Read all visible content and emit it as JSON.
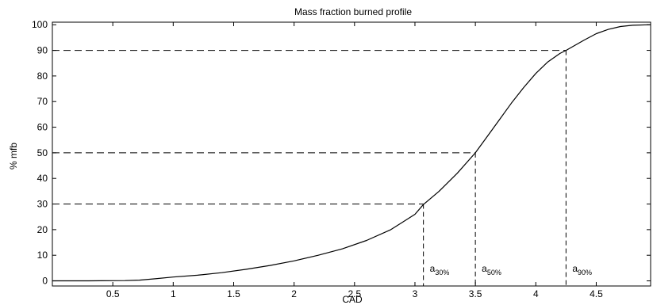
{
  "chart_data": {
    "type": "line",
    "title": "Mass fraction burned profile",
    "xlabel": "CAD",
    "ylabel": "% mfb",
    "xlim": [
      0,
      4.95
    ],
    "ylim": [
      -2,
      101
    ],
    "grid": false,
    "xticks": [
      {
        "value": 0.5,
        "label": "0.5"
      },
      {
        "value": 1,
        "label": "1"
      },
      {
        "value": 1.5,
        "label": "1.5"
      },
      {
        "value": 2,
        "label": "2"
      },
      {
        "value": 2.5,
        "label": "2.5"
      },
      {
        "value": 3,
        "label": "3"
      },
      {
        "value": 3.5,
        "label": "3.5"
      },
      {
        "value": 4,
        "label": "4"
      },
      {
        "value": 4.5,
        "label": "4.5"
      }
    ],
    "yticks": [
      {
        "value": 0,
        "label": "0"
      },
      {
        "value": 10,
        "label": "10"
      },
      {
        "value": 20,
        "label": "20"
      },
      {
        "value": 30,
        "label": "30"
      },
      {
        "value": 40,
        "label": "40"
      },
      {
        "value": 50,
        "label": "50"
      },
      {
        "value": 60,
        "label": "60"
      },
      {
        "value": 70,
        "label": "70"
      },
      {
        "value": 80,
        "label": "80"
      },
      {
        "value": 90,
        "label": "90"
      },
      {
        "value": 100,
        "label": "100"
      }
    ],
    "series": [
      {
        "x": [
          0,
          0.3,
          0.6,
          0.72,
          0.85,
          1.0,
          1.2,
          1.4,
          1.6,
          1.8,
          2.0,
          2.2,
          2.4,
          2.6,
          2.8,
          3.0,
          3.07,
          3.2,
          3.35,
          3.5,
          3.6,
          3.7,
          3.8,
          3.9,
          4.0,
          4.1,
          4.2,
          4.25,
          4.4,
          4.5,
          4.6,
          4.7,
          4.8,
          4.95
        ],
        "y": [
          0,
          0,
          0.1,
          0.3,
          0.8,
          1.5,
          2.2,
          3.2,
          4.5,
          6.0,
          7.8,
          10.0,
          12.5,
          15.8,
          20.0,
          26.0,
          29.8,
          35.0,
          42.0,
          50.0,
          56.5,
          63.0,
          69.5,
          75.5,
          81.0,
          85.5,
          88.8,
          90.0,
          94.0,
          96.5,
          98.2,
          99.3,
          99.8,
          100.0
        ],
        "color": "#000000"
      }
    ],
    "markers": [
      {
        "label_main": "a",
        "label_sub": "30%",
        "x": 3.07,
        "y": 30
      },
      {
        "label_main": "a",
        "label_sub": "50%",
        "x": 3.5,
        "y": 50
      },
      {
        "label_main": "a",
        "label_sub": "90%",
        "x": 4.25,
        "y": 90
      }
    ]
  }
}
